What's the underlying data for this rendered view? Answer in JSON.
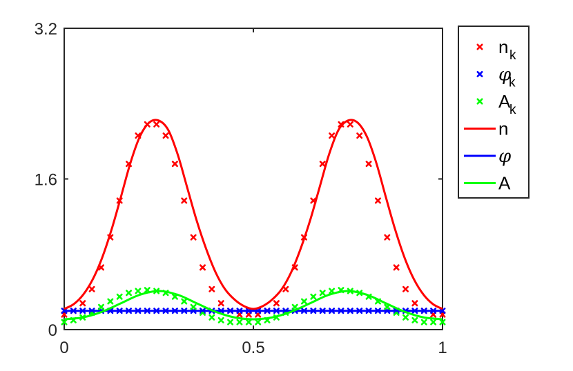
{
  "chart_data": {
    "type": "line",
    "title": "",
    "xlabel": "",
    "ylabel": "",
    "xlim": [
      0,
      1
    ],
    "ylim": [
      0,
      3.2
    ],
    "xticks": [
      "0",
      "0.5",
      "1"
    ],
    "yticks": [
      "0",
      "1.6",
      "3.2"
    ],
    "grid": false,
    "legend_position": "outside top-right",
    "series": [
      {
        "name": "n_k",
        "legend_main": "n",
        "legend_sub": "k",
        "style": "markers-x",
        "color": "#ff0000",
        "x": [
          0,
          0.0244,
          0.0488,
          0.0732,
          0.0976,
          0.122,
          0.1463,
          0.1707,
          0.1951,
          0.2195,
          0.2439,
          0.2683,
          0.2927,
          0.3171,
          0.3415,
          0.3659,
          0.3902,
          0.4146,
          0.439,
          0.4634,
          0.4878,
          0.5122,
          0.5366,
          0.561,
          0.5854,
          0.6098,
          0.6341,
          0.6585,
          0.6829,
          0.7073,
          0.7317,
          0.7561,
          0.7805,
          0.8049,
          0.8293,
          0.8537,
          0.878,
          0.9024,
          0.9268,
          0.9512,
          0.9756,
          1
        ],
        "y": [
          0.16,
          0.2,
          0.28,
          0.43,
          0.66,
          0.98,
          1.37,
          1.76,
          2.06,
          2.18,
          2.18,
          2.06,
          1.76,
          1.37,
          0.98,
          0.66,
          0.43,
          0.28,
          0.2,
          0.16,
          0.16,
          0.16,
          0.2,
          0.28,
          0.43,
          0.66,
          0.98,
          1.37,
          1.76,
          2.06,
          2.18,
          2.18,
          2.06,
          1.76,
          1.37,
          0.98,
          0.66,
          0.43,
          0.28,
          0.2,
          0.16,
          0.16
        ]
      },
      {
        "name": "phi_k",
        "legend_main": "φ",
        "legend_sub": "k",
        "style": "markers-x",
        "color": "#0000ff",
        "x": [
          0,
          0.0244,
          0.0488,
          0.0732,
          0.0976,
          0.122,
          0.1463,
          0.1707,
          0.1951,
          0.2195,
          0.2439,
          0.2683,
          0.2927,
          0.3171,
          0.3415,
          0.3659,
          0.3902,
          0.4146,
          0.439,
          0.4634,
          0.4878,
          0.5122,
          0.5366,
          0.561,
          0.5854,
          0.6098,
          0.6341,
          0.6585,
          0.6829,
          0.7073,
          0.7317,
          0.7561,
          0.7805,
          0.8049,
          0.8293,
          0.8537,
          0.878,
          0.9024,
          0.9268,
          0.9512,
          0.9756,
          1
        ],
        "y": [
          0.2,
          0.2,
          0.2,
          0.2,
          0.2,
          0.2,
          0.2,
          0.2,
          0.2,
          0.2,
          0.2,
          0.2,
          0.2,
          0.2,
          0.2,
          0.2,
          0.2,
          0.2,
          0.2,
          0.2,
          0.2,
          0.2,
          0.2,
          0.2,
          0.2,
          0.2,
          0.2,
          0.2,
          0.2,
          0.2,
          0.2,
          0.2,
          0.2,
          0.2,
          0.2,
          0.2,
          0.2,
          0.2,
          0.2,
          0.2,
          0.2,
          0.2
        ]
      },
      {
        "name": "A_k",
        "legend_main": "A",
        "legend_sub": "k",
        "style": "markers-x",
        "color": "#00ff00",
        "x": [
          0,
          0.0244,
          0.0488,
          0.0732,
          0.0976,
          0.122,
          0.1463,
          0.1707,
          0.1951,
          0.2195,
          0.2439,
          0.2683,
          0.2927,
          0.3171,
          0.3415,
          0.3659,
          0.3902,
          0.4146,
          0.439,
          0.4634,
          0.4878,
          0.5122,
          0.5366,
          0.561,
          0.5854,
          0.6098,
          0.6341,
          0.6585,
          0.6829,
          0.7073,
          0.7317,
          0.7561,
          0.7805,
          0.8049,
          0.8293,
          0.8537,
          0.878,
          0.9024,
          0.9268,
          0.9512,
          0.9756,
          1
        ],
        "y": [
          0.08,
          0.1,
          0.13,
          0.18,
          0.24,
          0.3,
          0.35,
          0.39,
          0.41,
          0.42,
          0.41,
          0.39,
          0.35,
          0.3,
          0.24,
          0.18,
          0.13,
          0.1,
          0.08,
          0.08,
          0.08,
          0.08,
          0.1,
          0.13,
          0.18,
          0.24,
          0.3,
          0.35,
          0.39,
          0.41,
          0.42,
          0.41,
          0.39,
          0.35,
          0.3,
          0.24,
          0.18,
          0.13,
          0.1,
          0.08,
          0.08,
          0.08
        ]
      },
      {
        "name": "n",
        "legend_main": "n",
        "legend_sub": "",
        "style": "line",
        "color": "#ff0000",
        "x": [
          0,
          0.025,
          0.05,
          0.075,
          0.1,
          0.125,
          0.15,
          0.175,
          0.2,
          0.225,
          0.25,
          0.275,
          0.3,
          0.325,
          0.35,
          0.375,
          0.4,
          0.425,
          0.45,
          0.475,
          0.5,
          0.525,
          0.55,
          0.575,
          0.6,
          0.625,
          0.65,
          0.675,
          0.7,
          0.725,
          0.75,
          0.775,
          0.8,
          0.825,
          0.85,
          0.875,
          0.9,
          0.925,
          0.95,
          0.975,
          1
        ],
        "y": [
          0.22,
          0.27,
          0.37,
          0.53,
          0.76,
          1.06,
          1.41,
          1.77,
          2.05,
          2.2,
          2.22,
          2.12,
          1.86,
          1.51,
          1.16,
          0.86,
          0.61,
          0.43,
          0.32,
          0.25,
          0.22,
          0.25,
          0.32,
          0.43,
          0.61,
          0.86,
          1.16,
          1.51,
          1.86,
          2.12,
          2.22,
          2.2,
          2.05,
          1.77,
          1.41,
          1.06,
          0.76,
          0.53,
          0.37,
          0.27,
          0.22
        ]
      },
      {
        "name": "phi",
        "legend_main": "φ",
        "legend_sub": "",
        "style": "line",
        "color": "#0000ff",
        "x": [
          0,
          1
        ],
        "y": [
          0.2,
          0.2
        ]
      },
      {
        "name": "A",
        "legend_main": "A",
        "legend_sub": "",
        "style": "line",
        "color": "#00ff00",
        "x": [
          0,
          0.05,
          0.1,
          0.15,
          0.2,
          0.25,
          0.3,
          0.35,
          0.4,
          0.45,
          0.5,
          0.55,
          0.6,
          0.65,
          0.7,
          0.75,
          0.8,
          0.85,
          0.9,
          0.95,
          1
        ],
        "y": [
          0.11,
          0.13,
          0.19,
          0.28,
          0.37,
          0.41,
          0.37,
          0.28,
          0.19,
          0.13,
          0.11,
          0.13,
          0.19,
          0.28,
          0.37,
          0.41,
          0.37,
          0.28,
          0.19,
          0.13,
          0.11
        ]
      }
    ]
  }
}
